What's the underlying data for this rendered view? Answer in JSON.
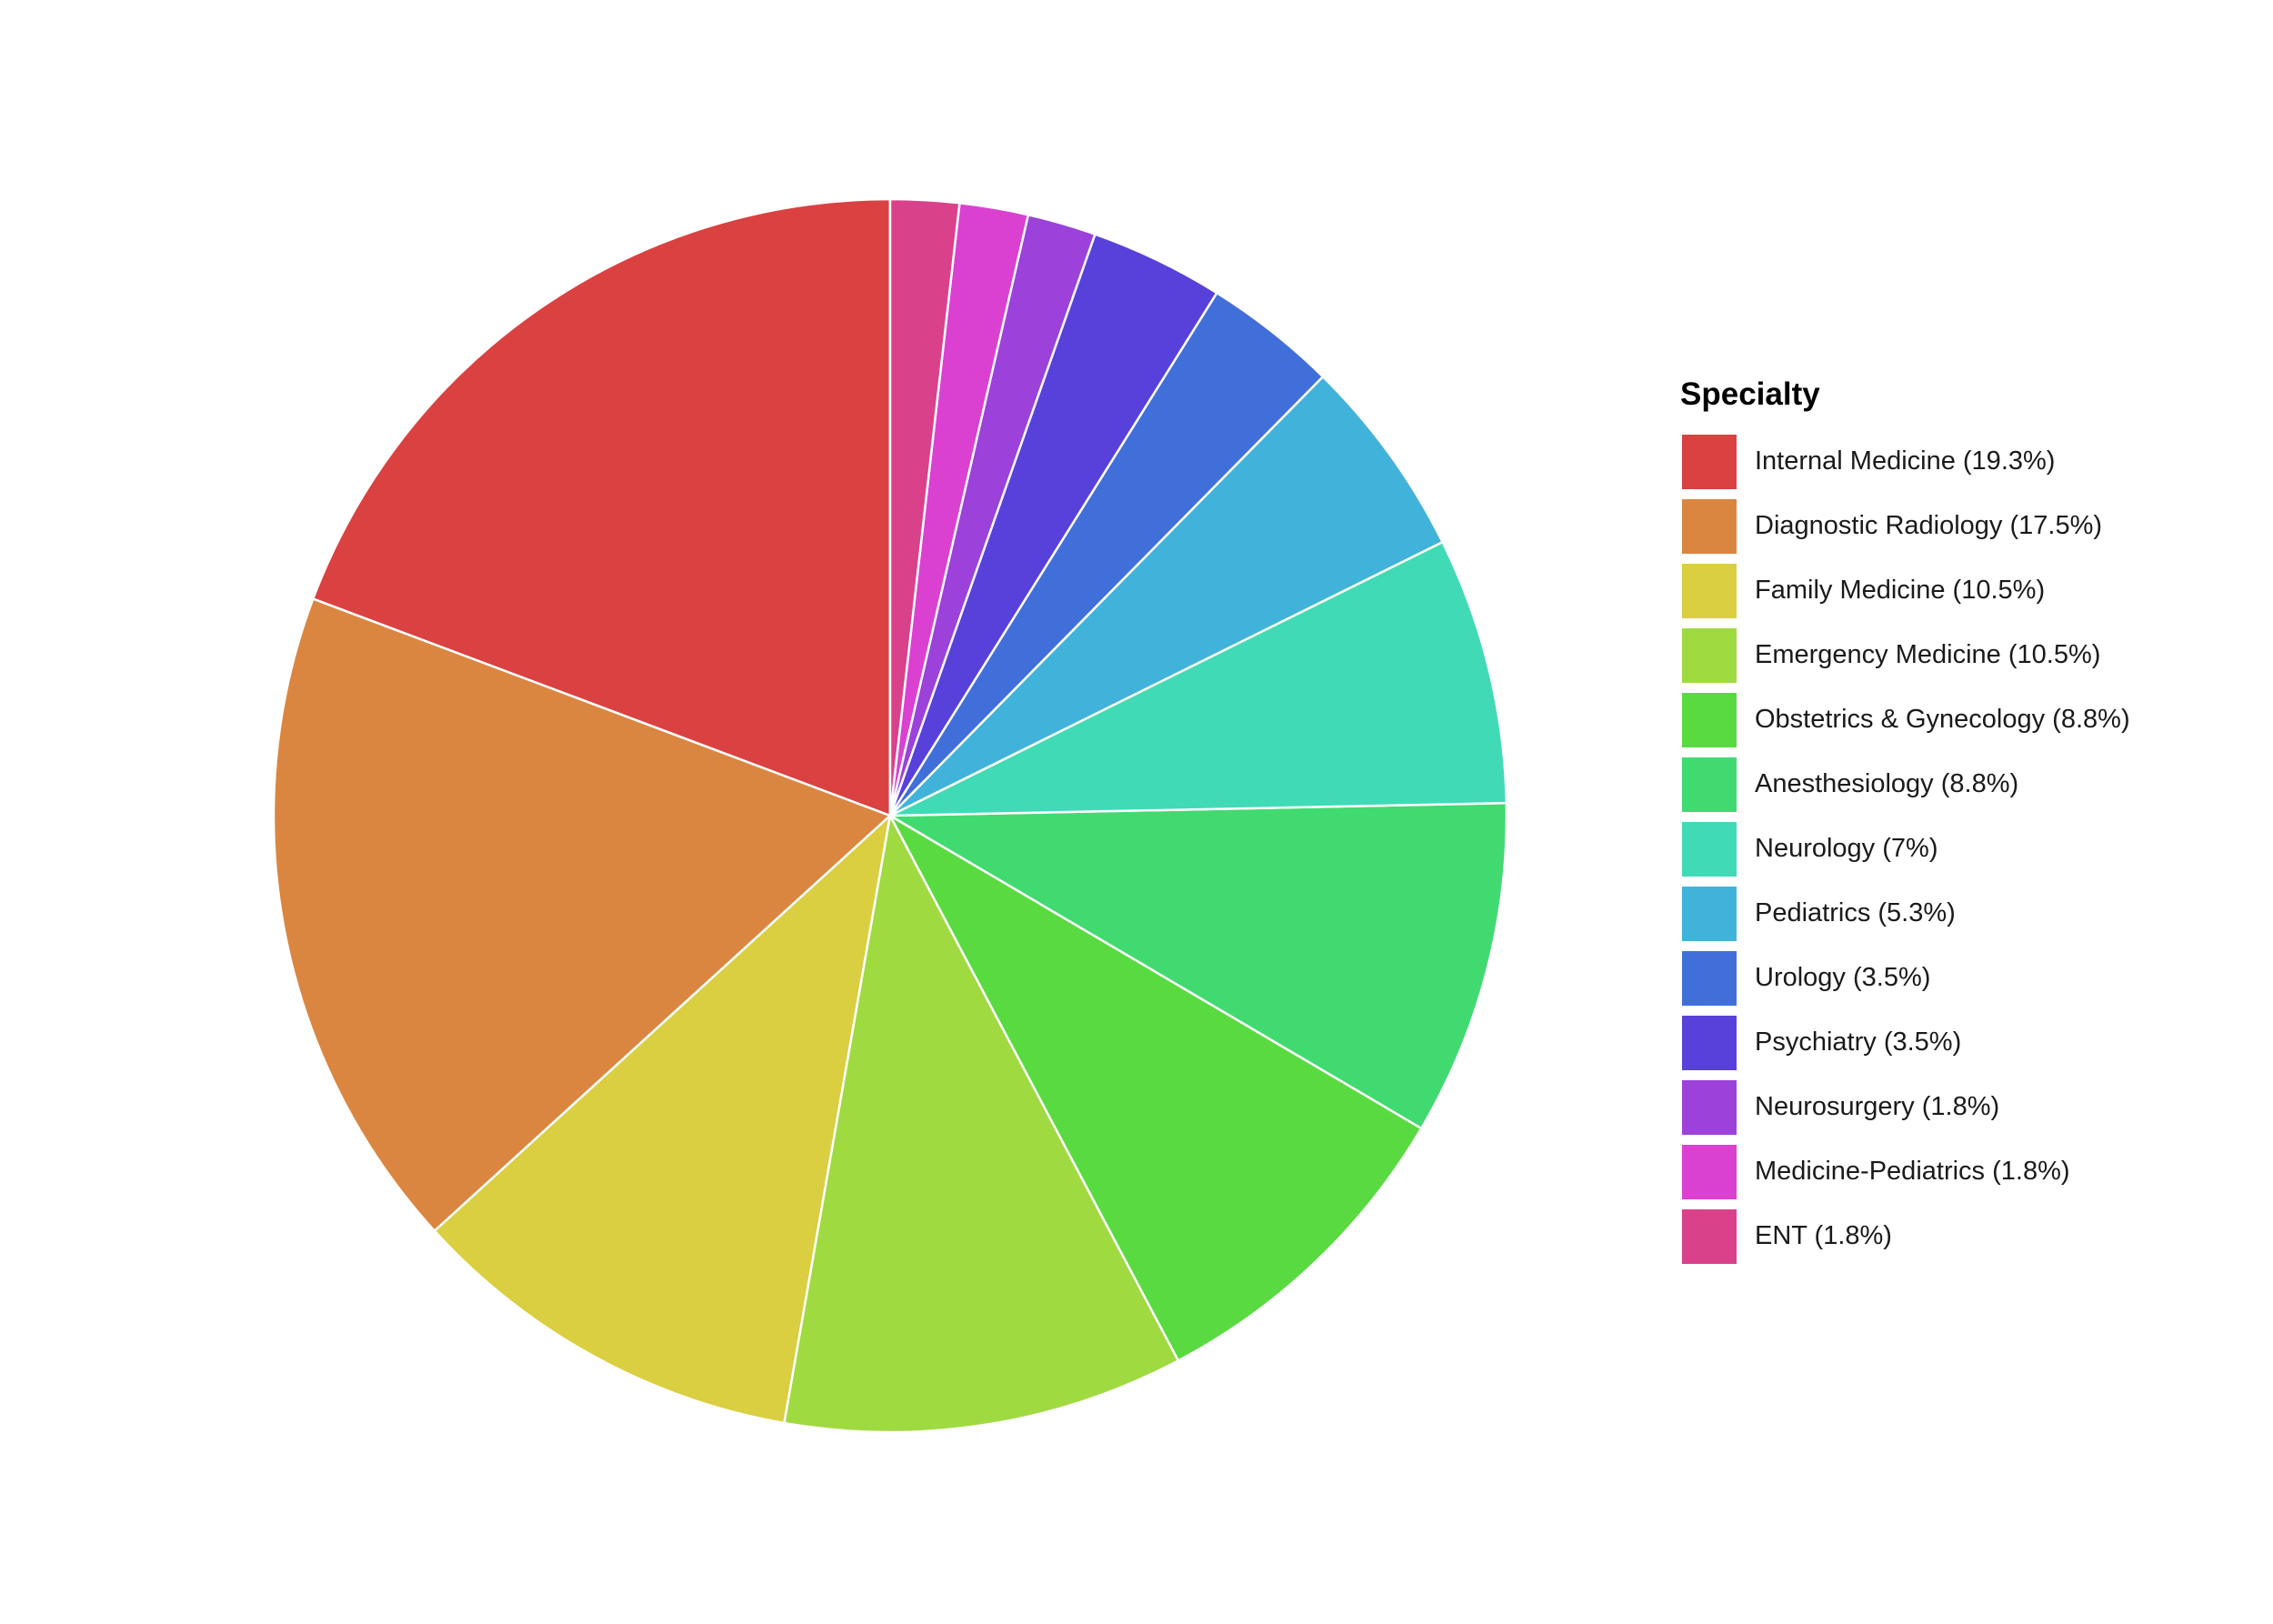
{
  "chart_data": {
    "type": "pie",
    "legend_title": "Specialty",
    "legend_position": "right",
    "start_angle_deg": 0,
    "direction": "counterclockwise",
    "slices": [
      {
        "label": "Internal Medicine (19.3%)",
        "value": 19.3,
        "color": "#DA4141"
      },
      {
        "label": "Diagnostic Radiology (17.5%)",
        "value": 17.5,
        "color": "#DA8641"
      },
      {
        "label": "Family Medicine (10.5%)",
        "value": 10.5,
        "color": "#DACE41"
      },
      {
        "label": "Emergency Medicine (10.5%)",
        "value": 10.5,
        "color": "#9FDA41"
      },
      {
        "label": "Obstetrics & Gynecology (8.8%)",
        "value": 8.8,
        "color": "#59DA41"
      },
      {
        "label": "Anesthesiology (8.8%)",
        "value": 8.8,
        "color": "#41DA71"
      },
      {
        "label": "Neurology (7%)",
        "value": 7.0,
        "color": "#41DAB6"
      },
      {
        "label": "Pediatrics (5.3%)",
        "value": 5.3,
        "color": "#41B3DA"
      },
      {
        "label": "Urology (3.5%)",
        "value": 3.5,
        "color": "#416FDA"
      },
      {
        "label": "Psychiatry (3.5%)",
        "value": 3.5,
        "color": "#5841DA"
      },
      {
        "label": "Neurosurgery (1.8%)",
        "value": 1.8,
        "color": "#9C41DA"
      },
      {
        "label": "Medicine-Pediatrics (1.8%)",
        "value": 1.8,
        "color": "#DA41D1"
      },
      {
        "label": "ENT (1.8%)",
        "value": 1.8,
        "color": "#DA418B"
      }
    ]
  }
}
